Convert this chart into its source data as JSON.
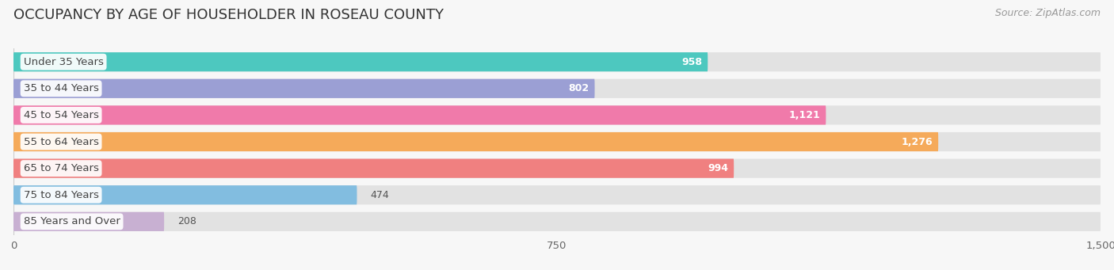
{
  "title": "OCCUPANCY BY AGE OF HOUSEHOLDER IN ROSEAU COUNTY",
  "source": "Source: ZipAtlas.com",
  "categories": [
    "Under 35 Years",
    "35 to 44 Years",
    "45 to 54 Years",
    "55 to 64 Years",
    "65 to 74 Years",
    "75 to 84 Years",
    "85 Years and Over"
  ],
  "values": [
    958,
    802,
    1121,
    1276,
    994,
    474,
    208
  ],
  "bar_colors": [
    "#4dc8bf",
    "#9b9fd4",
    "#f07aaa",
    "#f5aa5a",
    "#f08080",
    "#82bde0",
    "#c8b0d2"
  ],
  "xlim": [
    0,
    1500
  ],
  "xticks": [
    0,
    750,
    1500
  ],
  "title_fontsize": 13,
  "label_fontsize": 9.5,
  "value_fontsize": 9,
  "source_fontsize": 9,
  "background_color": "#f7f7f7",
  "bar_bg_color": "#e2e2e2"
}
